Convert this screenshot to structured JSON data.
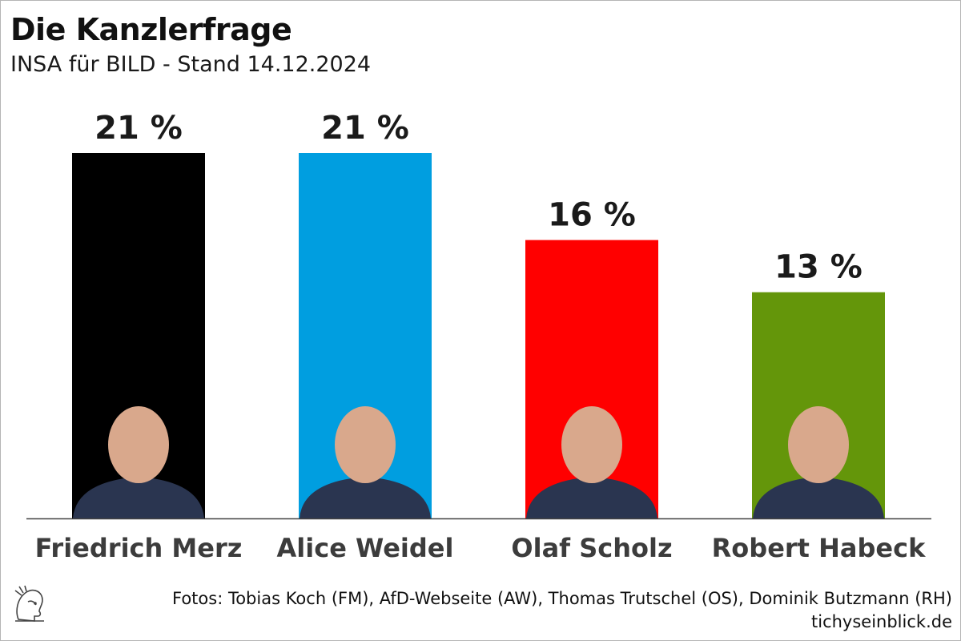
{
  "header": {
    "title": "Die Kanzlerfrage",
    "subtitle": "INSA für BILD - Stand 14.12.2024"
  },
  "chart_data": {
    "type": "bar",
    "categories": [
      "Friedrich Merz",
      "Alice Weidel",
      "Olaf Scholz",
      "Robert Habeck"
    ],
    "values": [
      21,
      21,
      16,
      13
    ],
    "value_labels": [
      "21 %",
      "21 %",
      "16 %",
      "13 %"
    ],
    "colors": [
      "#000000",
      "#009ee0",
      "#ff0000",
      "#64960a"
    ],
    "ylim": [
      0,
      21
    ]
  },
  "footer": {
    "credits": "Fotos: Tobias Koch (FM), AfD-Webseite (AW), Thomas Trutschel (OS), Dominik Butzmann (RH)",
    "site": "tichyseinblick.de",
    "logo_icon": "hermes-head-logo-icon"
  }
}
